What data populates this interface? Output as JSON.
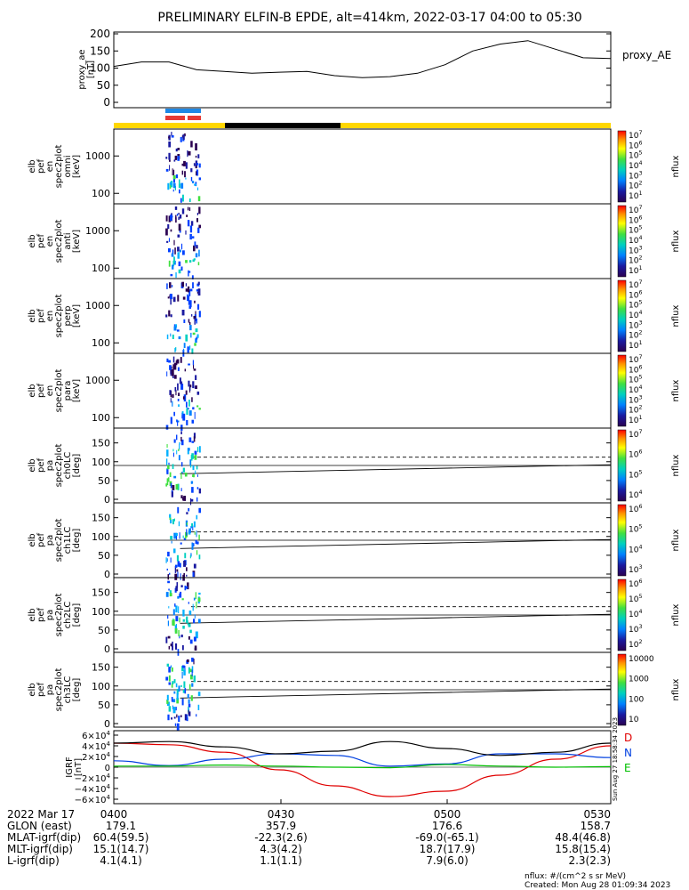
{
  "title": "PRELIMINARY ELFIN-B EPDE, alt=414km, 2022-03-17 04:00 to 05:30",
  "proxy_panel": {
    "ylabel_lines": [
      "proxy_ae",
      "[nT]"
    ],
    "series_label": "proxy_AE",
    "y_ticks": [
      "200",
      "150",
      "100",
      "50",
      "0"
    ]
  },
  "spectrogram_panels": [
    {
      "ylabel_lines": [
        "elb",
        "pef",
        "en",
        "spec2plot",
        "omni",
        "[keV]"
      ],
      "y_ticks": [
        "1000",
        "100"
      ],
      "cbar_ticks": [
        "10^7",
        "10^6",
        "10^5",
        "10^4",
        "10^3",
        "10^2",
        "10^1"
      ],
      "cbar_label": "nflux"
    },
    {
      "ylabel_lines": [
        "elb",
        "pef",
        "en",
        "spec2plot",
        "anti",
        "[keV]"
      ],
      "y_ticks": [
        "1000",
        "100"
      ],
      "cbar_ticks": [
        "10^7",
        "10^6",
        "10^5",
        "10^4",
        "10^3",
        "10^2",
        "10^1"
      ],
      "cbar_label": "nflux"
    },
    {
      "ylabel_lines": [
        "elb",
        "pef",
        "en",
        "spec2plot",
        "perp",
        "[keV]"
      ],
      "y_ticks": [
        "1000",
        "100"
      ],
      "cbar_ticks": [
        "10^7",
        "10^6",
        "10^5",
        "10^4",
        "10^3",
        "10^2",
        "10^1"
      ],
      "cbar_label": "nflux"
    },
    {
      "ylabel_lines": [
        "elb",
        "pef",
        "en",
        "spec2plot",
        "para",
        "[keV]"
      ],
      "y_ticks": [
        "1000",
        "100"
      ],
      "cbar_ticks": [
        "10^7",
        "10^6",
        "10^5",
        "10^4",
        "10^3",
        "10^2",
        "10^1"
      ],
      "cbar_label": "nflux"
    }
  ],
  "pitch_panels": [
    {
      "ylabel_lines": [
        "elb",
        "pef",
        "pa",
        "spec2plot",
        "ch0LC",
        "[deg]"
      ],
      "y_ticks": [
        "150",
        "100",
        "50",
        "0"
      ],
      "cbar_ticks": [
        "10^7",
        "10^6",
        "10^5",
        "10^4"
      ],
      "cbar_label": "nflux"
    },
    {
      "ylabel_lines": [
        "elb",
        "pef",
        "pa",
        "spec2plot",
        "ch1LC",
        "[deg]"
      ],
      "y_ticks": [
        "150",
        "100",
        "50",
        "0"
      ],
      "cbar_ticks": [
        "10^6",
        "10^5",
        "10^4",
        "10^3"
      ],
      "cbar_label": "nflux"
    },
    {
      "ylabel_lines": [
        "elb",
        "pef",
        "pa",
        "spec2plot",
        "ch2LC",
        "[deg]"
      ],
      "y_ticks": [
        "150",
        "100",
        "50",
        "0"
      ],
      "cbar_ticks": [
        "10^6",
        "10^5",
        "10^4",
        "10^3",
        "10^2"
      ],
      "cbar_label": "nflux"
    },
    {
      "ylabel_lines": [
        "elb",
        "pef",
        "pa",
        "spec2plot",
        "ch3LC",
        "[deg]"
      ],
      "y_ticks": [
        "150",
        "100",
        "50",
        "0"
      ],
      "cbar_ticks": [
        "10000",
        "1000",
        "100",
        "10"
      ],
      "cbar_label": "nflux"
    }
  ],
  "igrf_panel": {
    "ylabel_lines": [
      "IGRF",
      "[nT]"
    ],
    "y_ticks": [
      "6×10^4",
      "4×10^4",
      "2×10^4",
      "0",
      "−2×10^4",
      "−4×10^4",
      "−6×10^4"
    ],
    "legend": [
      {
        "label": "D",
        "color": "#e00000"
      },
      {
        "label": "N",
        "color": "#0040e0"
      },
      {
        "label": "E",
        "color": "#00c000"
      }
    ],
    "timestamp": "Sun Aug 27 18:58:34 2023"
  },
  "orbit_table": {
    "row_labels": [
      "2022 Mar 17",
      "GLON (east)",
      "MLAT-igrf(dip)",
      "MLT-igrf(dip)",
      "L-igrf(dip)"
    ],
    "columns": [
      {
        "time": "0400",
        "values": [
          "179.1",
          "60.4(59.5)",
          "15.1(14.7)",
          "4.1(4.1)"
        ]
      },
      {
        "time": "0430",
        "values": [
          "357.9",
          "-22.3(2.6)",
          "4.3(4.2)",
          "1.1(1.1)"
        ]
      },
      {
        "time": "0500",
        "values": [
          "176.6",
          "-69.0(-65.1)",
          "18.7(17.9)",
          "7.9(6.0)"
        ]
      },
      {
        "time": "0530",
        "values": [
          "158.7",
          "48.4(46.8)",
          "15.8(15.4)",
          "2.3(2.3)"
        ]
      }
    ]
  },
  "footer": {
    "units": "nflux: #/(cm^2 s sr MeV)",
    "created": "Created: Mon Aug 28 01:09:34 2023"
  },
  "colors": {
    "sci_zone_blue": "#1e88e5",
    "sci_zone_red": "#e53935",
    "day_bar": "#ffd700",
    "night_bar": "#000000"
  },
  "chart_data": {
    "type": "line",
    "title": "PRELIMINARY ELFIN-B EPDE, alt=414km, 2022-03-17 04:00 to 05:30",
    "x_ticks": [
      "0400",
      "0430",
      "0500",
      "0530"
    ],
    "x_range_min": [
      0,
      90
    ],
    "series": [
      {
        "name": "proxy_AE",
        "x": [
          0,
          5,
          10,
          15,
          20,
          25,
          30,
          35,
          40,
          45,
          50,
          55,
          60,
          65,
          70,
          75,
          80,
          85,
          90
        ],
        "y": [
          105,
          118,
          118,
          95,
          90,
          85,
          88,
          90,
          78,
          72,
          75,
          85,
          110,
          150,
          170,
          180,
          155,
          130,
          128
        ]
      },
      {
        "name": "D",
        "x": [
          0,
          10,
          20,
          30,
          40,
          50,
          60,
          70,
          80,
          90
        ],
        "y": [
          45000,
          42000,
          28000,
          -5000,
          -35000,
          -55000,
          -45000,
          -15000,
          15000,
          40000
        ]
      },
      {
        "name": "N",
        "x": [
          0,
          10,
          20,
          30,
          40,
          50,
          60,
          70,
          80,
          90
        ],
        "y": [
          12000,
          3000,
          15000,
          25000,
          22000,
          2000,
          6000,
          25000,
          25000,
          18000
        ]
      },
      {
        "name": "E",
        "x": [
          0,
          10,
          20,
          30,
          40,
          50,
          60,
          70,
          80,
          90
        ],
        "y": [
          2000,
          2000,
          4000,
          2000,
          0,
          -1000,
          5000,
          2000,
          0,
          1000
        ]
      },
      {
        "name": "",
        "x": [
          0,
          10,
          20,
          30,
          40,
          50,
          60,
          70,
          80,
          90
        ],
        "y": [
          45000,
          48000,
          38000,
          25000,
          30000,
          48000,
          35000,
          22000,
          28000,
          45000
        ]
      }
    ]
  }
}
